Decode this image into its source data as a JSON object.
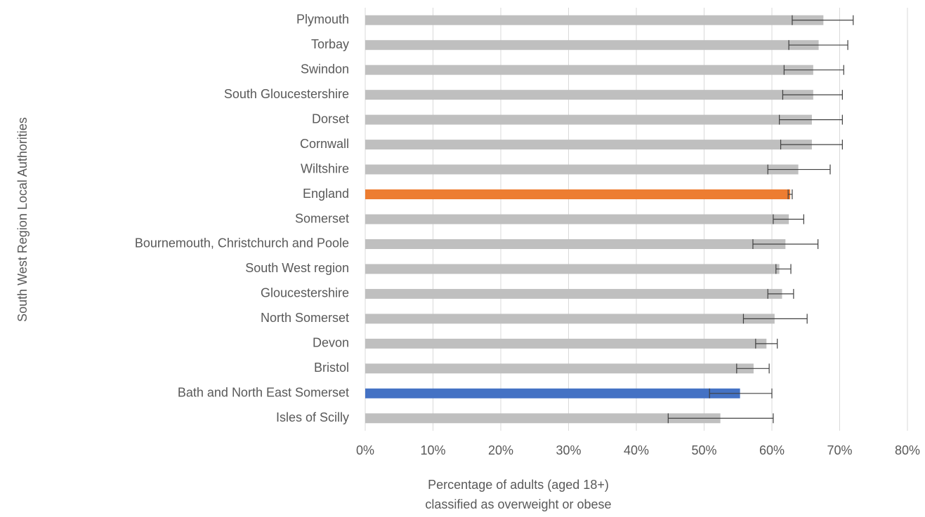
{
  "chart_data": {
    "type": "barh",
    "x_label": [
      "Percentage of adults (aged 18+)",
      "classified as overweight  or obese"
    ],
    "y_label": "South West Region  Local Authorities",
    "categories": [
      "Plymouth",
      "Torbay",
      "Swindon",
      "South Gloucestershire",
      "Dorset",
      "Cornwall",
      "Wiltshire",
      "England",
      "Somerset",
      "Bournemouth, Christchurch and Poole",
      "South West region",
      "Gloucestershire",
      "North Somerset",
      "Devon",
      "Bristol",
      "Bath and North East Somerset",
      "Isles of Scilly"
    ],
    "values": [
      67.6,
      66.9,
      66.1,
      66.1,
      65.9,
      65.9,
      63.9,
      62.7,
      62.5,
      62.0,
      61.1,
      61.5,
      60.4,
      59.2,
      57.3,
      55.3,
      52.4
    ],
    "ci_lower": [
      63.0,
      62.5,
      61.8,
      61.6,
      61.1,
      61.3,
      59.4,
      62.4,
      60.2,
      57.2,
      60.6,
      59.4,
      55.8,
      57.6,
      54.8,
      50.8,
      44.7
    ],
    "ci_upper": [
      72.0,
      71.2,
      70.6,
      70.4,
      70.4,
      70.4,
      68.6,
      63.0,
      64.7,
      66.8,
      62.8,
      63.2,
      65.2,
      60.8,
      59.6,
      60.0,
      60.2
    ],
    "colors": [
      "#bfbfbf",
      "#bfbfbf",
      "#bfbfbf",
      "#bfbfbf",
      "#bfbfbf",
      "#bfbfbf",
      "#bfbfbf",
      "#ed7d31",
      "#bfbfbf",
      "#bfbfbf",
      "#bfbfbf",
      "#bfbfbf",
      "#bfbfbf",
      "#bfbfbf",
      "#bfbfbf",
      "#4472c4",
      "#bfbfbf"
    ],
    "xlim": [
      0,
      80
    ],
    "xticks": [
      {
        "value": 0,
        "label": "0%"
      },
      {
        "value": 10,
        "label": "10%"
      },
      {
        "value": 20,
        "label": "20%"
      },
      {
        "value": 30,
        "label": "30%"
      },
      {
        "value": 40,
        "label": "40%"
      },
      {
        "value": 50,
        "label": "50%"
      },
      {
        "value": 60,
        "label": "60%"
      },
      {
        "value": 70,
        "label": "70%"
      },
      {
        "value": 80,
        "label": "80%"
      }
    ],
    "grid": true
  }
}
